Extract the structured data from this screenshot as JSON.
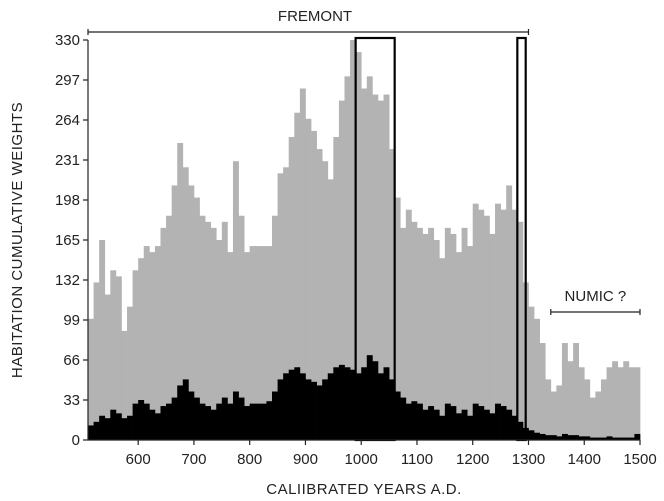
{
  "chart_data": {
    "type": "bar",
    "title": "",
    "xlabel": "CALIIBRATED YEARS A.D.",
    "ylabel": "HABITATION CUMULATIVE WEIGHTS",
    "xlim": [
      510,
      1500
    ],
    "ylim": [
      0,
      330
    ],
    "xticks": [
      "600",
      "700",
      "800",
      "900",
      "1000",
      "1100",
      "1200",
      "1300",
      "1400",
      "1500"
    ],
    "yticks": [
      "0",
      "33",
      "66",
      "99",
      "132",
      "165",
      "198",
      "231",
      "264",
      "297",
      "330"
    ],
    "bin_width": 10,
    "x": [
      510,
      520,
      530,
      540,
      550,
      560,
      570,
      580,
      590,
      600,
      610,
      620,
      630,
      640,
      650,
      660,
      670,
      680,
      690,
      700,
      710,
      720,
      730,
      740,
      750,
      760,
      770,
      780,
      790,
      800,
      810,
      820,
      830,
      840,
      850,
      860,
      870,
      880,
      890,
      900,
      910,
      920,
      930,
      940,
      950,
      960,
      970,
      980,
      990,
      1000,
      1010,
      1020,
      1030,
      1040,
      1050,
      1060,
      1070,
      1080,
      1090,
      1100,
      1110,
      1120,
      1130,
      1140,
      1150,
      1160,
      1170,
      1180,
      1190,
      1200,
      1210,
      1220,
      1230,
      1240,
      1250,
      1260,
      1270,
      1280,
      1290,
      1300,
      1310,
      1320,
      1330,
      1340,
      1350,
      1360,
      1370,
      1380,
      1390,
      1400,
      1410,
      1420,
      1430,
      1440,
      1450,
      1460,
      1470,
      1480,
      1490
    ],
    "series": [
      {
        "color": "#b3b3b3",
        "values": [
          100,
          130,
          165,
          120,
          140,
          135,
          90,
          110,
          140,
          150,
          160,
          155,
          160,
          175,
          185,
          210,
          245,
          225,
          210,
          200,
          185,
          180,
          175,
          165,
          180,
          155,
          230,
          185,
          155,
          160,
          160,
          160,
          160,
          185,
          220,
          225,
          250,
          270,
          290,
          265,
          255,
          240,
          230,
          215,
          250,
          280,
          300,
          330,
          320,
          290,
          300,
          285,
          280,
          285,
          240,
          200,
          175,
          190,
          180,
          175,
          170,
          175,
          165,
          150,
          175,
          170,
          155,
          175,
          160,
          195,
          190,
          185,
          170,
          195,
          190,
          210,
          190,
          180,
          130,
          110,
          100,
          80,
          50,
          40,
          45,
          80,
          65,
          80,
          60,
          50,
          35,
          40,
          50,
          60,
          65,
          60,
          65,
          60,
          60
        ]
      },
      {
        "color": "#000000",
        "values": [
          12,
          15,
          20,
          18,
          25,
          22,
          18,
          20,
          30,
          33,
          30,
          25,
          22,
          28,
          30,
          35,
          45,
          50,
          40,
          35,
          30,
          28,
          25,
          30,
          35,
          30,
          40,
          35,
          28,
          30,
          30,
          30,
          32,
          40,
          50,
          55,
          58,
          60,
          55,
          50,
          48,
          45,
          50,
          55,
          60,
          62,
          60,
          58,
          55,
          60,
          70,
          65,
          55,
          60,
          50,
          40,
          35,
          30,
          32,
          30,
          25,
          28,
          25,
          20,
          30,
          28,
          22,
          25,
          20,
          30,
          28,
          25,
          22,
          30,
          28,
          25,
          20,
          15,
          10,
          8,
          6,
          5,
          4,
          4,
          3,
          5,
          4,
          4,
          3,
          3,
          2,
          2,
          2,
          3,
          2,
          2,
          2,
          2,
          5
        ]
      }
    ],
    "highlight_boxes": [
      {
        "x_start": 990,
        "x_end": 1060
      },
      {
        "x_start": 1280,
        "x_end": 1295
      }
    ],
    "annotations": [
      {
        "text": "FREMONT",
        "range": [
          510,
          1300
        ]
      },
      {
        "text": "NUMIC ?",
        "range": [
          1340,
          1500
        ]
      }
    ],
    "legend": "none",
    "grid": false
  }
}
